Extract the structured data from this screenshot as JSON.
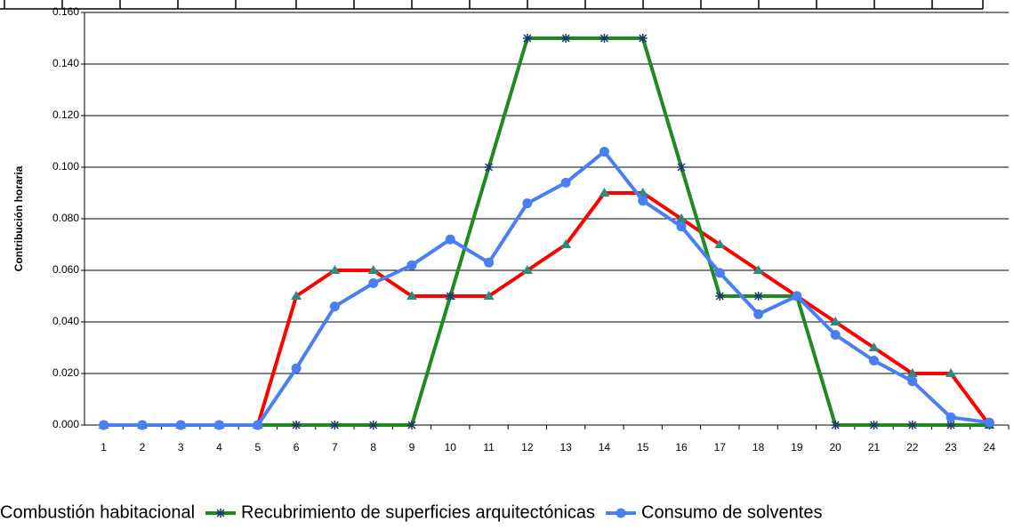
{
  "chart_data": {
    "type": "line",
    "y_label": "Contribución horaria",
    "categories": [
      "1",
      "2",
      "3",
      "4",
      "5",
      "6",
      "7",
      "8",
      "9",
      "10",
      "11",
      "12",
      "13",
      "14",
      "15",
      "16",
      "17",
      "18",
      "19",
      "20",
      "21",
      "22",
      "23",
      "24"
    ],
    "series": [
      {
        "name": "Combustión habitacional",
        "color": "#ff0000",
        "marker": "triangle",
        "marker_color": "#2e8b80",
        "values": [
          0,
          0,
          0,
          0,
          0,
          0.05,
          0.06,
          0.06,
          0.05,
          0.05,
          0.05,
          0.06,
          0.07,
          0.09,
          0.09,
          0.08,
          0.07,
          0.06,
          0.05,
          0.04,
          0.03,
          0.02,
          0.02,
          0
        ]
      },
      {
        "name": "Recubrimiento de superficies arquitectónicas",
        "color": "#1f8a1f",
        "marker": "star",
        "marker_color": "#1a3a6e",
        "values": [
          0,
          0,
          0,
          0,
          0,
          0,
          0,
          0,
          0,
          0.05,
          0.1,
          0.15,
          0.15,
          0.15,
          0.15,
          0.1,
          0.05,
          0.05,
          0.05,
          0,
          0,
          0,
          0,
          0
        ]
      },
      {
        "name": "Consumo de solventes",
        "color": "#4a7ef5",
        "marker": "circle",
        "marker_color": "#4a7ef5",
        "values": [
          0,
          0,
          0,
          0,
          0,
          0.022,
          0.046,
          0.055,
          0.062,
          0.072,
          0.063,
          0.086,
          0.094,
          0.106,
          0.087,
          0.077,
          0.059,
          0.043,
          0.05,
          0.035,
          0.025,
          0.017,
          0.003,
          0.001
        ]
      }
    ],
    "ylim": [
      0,
      0.16
    ],
    "yticks": [
      {
        "value": 0,
        "label": "0.000"
      },
      {
        "value": 0.02,
        "label": "0.020"
      },
      {
        "value": 0.04,
        "label": "0.040"
      },
      {
        "value": 0.06,
        "label": "0.060"
      },
      {
        "value": 0.08,
        "label": "0.080"
      },
      {
        "value": 0.1,
        "label": "0.100"
      },
      {
        "value": 0.12,
        "label": "0.120"
      },
      {
        "value": 0.14,
        "label": "0.140"
      },
      {
        "value": 0.16,
        "label": "0.160"
      }
    ],
    "grid": true
  }
}
